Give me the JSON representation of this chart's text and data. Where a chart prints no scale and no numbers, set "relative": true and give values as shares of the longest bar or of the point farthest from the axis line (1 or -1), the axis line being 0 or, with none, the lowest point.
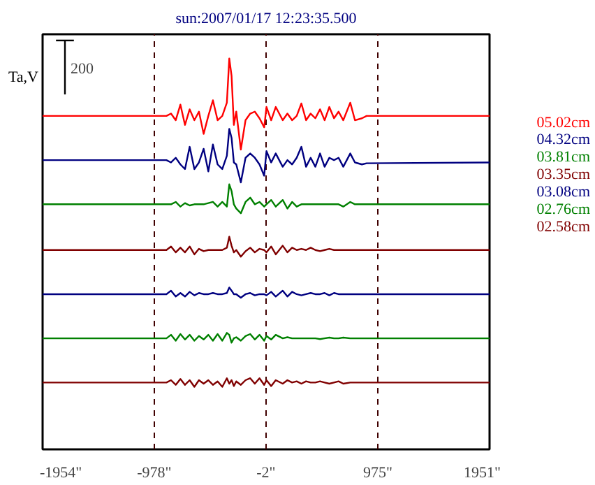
{
  "chart_data": {
    "type": "line",
    "relative": true,
    "title": "sun:2007/01/17 12:23:35.500",
    "ylabel": "Ta,V",
    "annotations": [
      "200"
    ],
    "xlim": [
      -1954,
      1951
    ],
    "xticks": [
      {
        "value": -1954,
        "label": "-1954\""
      },
      {
        "value": -978,
        "label": "-978\""
      },
      {
        "value": -2,
        "label": "-2\""
      },
      {
        "value": 975,
        "label": "975\""
      },
      {
        "value": 1951,
        "label": "1951\""
      }
    ],
    "grid": "x",
    "legend": "right",
    "x": [
      -1954,
      -872,
      -832,
      -791,
      -750,
      -710,
      -669,
      -628,
      -588,
      -547,
      -506,
      -466,
      -425,
      -384,
      -344,
      -323,
      -303,
      -283,
      -262,
      -222,
      -181,
      -140,
      -100,
      -59,
      -18,
      2,
      43,
      83,
      144,
      185,
      226,
      266,
      307,
      348,
      388,
      429,
      470,
      510,
      551,
      592,
      632,
      673,
      734,
      775,
      836,
      877,
      1951
    ],
    "series": [
      {
        "name": "05.02cm",
        "color": "#ff0000",
        "values": [
          0.853,
          0.853,
          0.859,
          0.842,
          0.882,
          0.83,
          0.87,
          0.842,
          0.864,
          0.807,
          0.853,
          0.893,
          0.842,
          0.853,
          0.887,
          1.0,
          0.956,
          0.83,
          0.864,
          0.767,
          0.842,
          0.859,
          0.864,
          0.847,
          0.824,
          0.876,
          0.842,
          0.876,
          0.842,
          0.859,
          0.842,
          0.853,
          0.885,
          0.842,
          0.859,
          0.847,
          0.87,
          0.842,
          0.876,
          0.847,
          0.864,
          0.842,
          0.887,
          0.842,
          0.847,
          0.853,
          0.853
        ]
      },
      {
        "name": "04.32cm",
        "color": "#000080",
        "values": [
          0.74,
          0.74,
          0.734,
          0.746,
          0.729,
          0.717,
          0.774,
          0.717,
          0.734,
          0.769,
          0.711,
          0.78,
          0.729,
          0.717,
          0.751,
          0.82,
          0.797,
          0.734,
          0.729,
          0.683,
          0.746,
          0.757,
          0.746,
          0.729,
          0.7,
          0.763,
          0.734,
          0.757,
          0.723,
          0.74,
          0.729,
          0.746,
          0.774,
          0.723,
          0.746,
          0.723,
          0.757,
          0.723,
          0.746,
          0.74,
          0.746,
          0.723,
          0.757,
          0.734,
          0.729,
          0.732,
          0.734
        ]
      },
      {
        "name": "03.81cm",
        "color": "#008000",
        "values": [
          0.627,
          0.627,
          0.627,
          0.633,
          0.621,
          0.63,
          0.624,
          0.627,
          0.627,
          0.627,
          0.63,
          0.633,
          0.621,
          0.633,
          0.621,
          0.678,
          0.661,
          0.627,
          0.616,
          0.604,
          0.633,
          0.644,
          0.627,
          0.633,
          0.621,
          0.627,
          0.638,
          0.621,
          0.638,
          0.616,
          0.633,
          0.621,
          0.627,
          0.627,
          0.627,
          0.627,
          0.627,
          0.627,
          0.627,
          0.627,
          0.627,
          0.621,
          0.633,
          0.627,
          0.627,
          0.627,
          0.627
        ]
      },
      {
        "name": "03.35cm",
        "color": "#800000",
        "values": [
          0.51,
          0.51,
          0.519,
          0.504,
          0.516,
          0.504,
          0.519,
          0.499,
          0.513,
          0.507,
          0.51,
          0.51,
          0.51,
          0.51,
          0.516,
          0.544,
          0.521,
          0.504,
          0.51,
          0.493,
          0.507,
          0.516,
          0.504,
          0.513,
          0.51,
          0.504,
          0.519,
          0.499,
          0.521,
          0.504,
          0.516,
          0.51,
          0.513,
          0.51,
          0.516,
          0.51,
          0.507,
          0.51,
          0.513,
          0.51,
          0.51,
          0.51,
          0.51,
          0.51,
          0.51,
          0.51,
          0.51
        ]
      },
      {
        "name": "03.08cm",
        "color": "#000080",
        "values": [
          0.397,
          0.397,
          0.406,
          0.391,
          0.4,
          0.391,
          0.403,
          0.394,
          0.4,
          0.397,
          0.397,
          0.4,
          0.397,
          0.397,
          0.4,
          0.414,
          0.406,
          0.397,
          0.397,
          0.388,
          0.397,
          0.4,
          0.394,
          0.397,
          0.397,
          0.394,
          0.403,
          0.391,
          0.406,
          0.391,
          0.403,
          0.397,
          0.394,
          0.397,
          0.4,
          0.397,
          0.397,
          0.4,
          0.394,
          0.4,
          0.397,
          0.397,
          0.397,
          0.397,
          0.397,
          0.397,
          0.397
        ]
      },
      {
        "name": "02.76cm",
        "color": "#008000",
        "values": [
          0.284,
          0.284,
          0.293,
          0.278,
          0.295,
          0.281,
          0.293,
          0.278,
          0.29,
          0.281,
          0.293,
          0.278,
          0.295,
          0.278,
          0.298,
          0.293,
          0.273,
          0.284,
          0.287,
          0.278,
          0.29,
          0.295,
          0.281,
          0.293,
          0.278,
          0.29,
          0.281,
          0.293,
          0.284,
          0.287,
          0.284,
          0.284,
          0.284,
          0.284,
          0.284,
          0.284,
          0.282,
          0.284,
          0.286,
          0.284,
          0.284,
          0.286,
          0.284,
          0.284,
          0.284,
          0.284,
          0.284
        ]
      },
      {
        "name": "02.58cm",
        "color": "#800000",
        "values": [
          0.171,
          0.171,
          0.177,
          0.165,
          0.18,
          0.165,
          0.177,
          0.16,
          0.177,
          0.168,
          0.177,
          0.165,
          0.174,
          0.16,
          0.182,
          0.168,
          0.177,
          0.162,
          0.174,
          0.165,
          0.177,
          0.182,
          0.168,
          0.182,
          0.165,
          0.177,
          0.162,
          0.177,
          0.168,
          0.177,
          0.171,
          0.174,
          0.168,
          0.174,
          0.171,
          0.171,
          0.174,
          0.171,
          0.168,
          0.171,
          0.174,
          0.168,
          0.171,
          0.171,
          0.171,
          0.171,
          0.171
        ]
      }
    ]
  }
}
